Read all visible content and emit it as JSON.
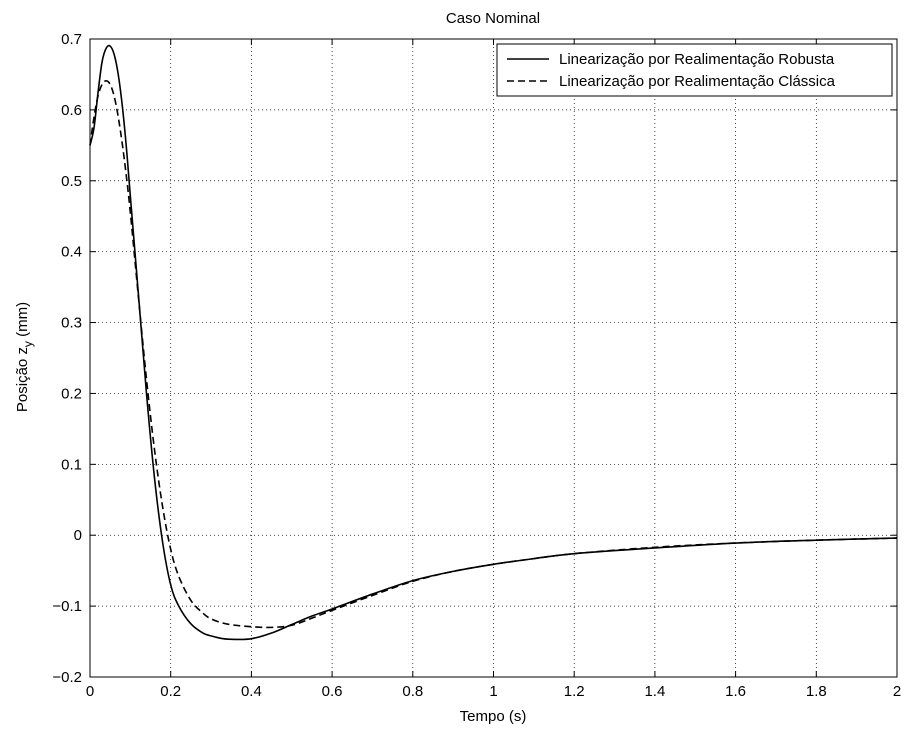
{
  "chart_data": {
    "type": "line",
    "title": "Caso Nominal",
    "xlabel": "Tempo (s)",
    "ylabel_main": "Posição  z",
    "ylabel_sub": "y",
    "ylabel_unit": " (mm)",
    "xlim": [
      0,
      2
    ],
    "ylim": [
      -0.2,
      0.7
    ],
    "x_ticks": [
      0,
      0.2,
      0.4,
      0.6,
      0.8,
      1,
      1.2,
      1.4,
      1.6,
      1.8,
      2
    ],
    "x_tick_labels": [
      "0",
      "0.2",
      "0.4",
      "0.6",
      "0.8",
      "1",
      "1.2",
      "1.4",
      "1.6",
      "1.8",
      "2"
    ],
    "y_ticks": [
      -0.2,
      -0.1,
      0,
      0.1,
      0.2,
      0.3,
      0.4,
      0.5,
      0.6,
      0.7
    ],
    "y_tick_labels": [
      "−0.2",
      "−0.1",
      "0",
      "0.1",
      "0.2",
      "0.3",
      "0.4",
      "0.5",
      "0.6",
      "0.7"
    ],
    "grid": true,
    "legend_position": "top-right",
    "series": [
      {
        "name": "Linearização por Realimentação Robusta",
        "style": "solid",
        "color": "#000000",
        "x": [
          0,
          0.01,
          0.02,
          0.03,
          0.04,
          0.05,
          0.06,
          0.07,
          0.08,
          0.09,
          0.1,
          0.12,
          0.14,
          0.16,
          0.18,
          0.2,
          0.22,
          0.25,
          0.28,
          0.3,
          0.33,
          0.36,
          0.4,
          0.45,
          0.5,
          0.55,
          0.6,
          0.7,
          0.8,
          0.9,
          1.0,
          1.1,
          1.2,
          1.4,
          1.6,
          1.8,
          2.0
        ],
        "y": [
          0.55,
          0.575,
          0.625,
          0.668,
          0.687,
          0.69,
          0.678,
          0.65,
          0.606,
          0.548,
          0.478,
          0.34,
          0.2,
          0.08,
          -0.01,
          -0.07,
          -0.1,
          -0.125,
          -0.138,
          -0.142,
          -0.146,
          -0.147,
          -0.146,
          -0.138,
          -0.126,
          -0.114,
          -0.104,
          -0.083,
          -0.064,
          -0.051,
          -0.041,
          -0.033,
          -0.026,
          -0.018,
          -0.011,
          -0.007,
          -0.004
        ]
      },
      {
        "name": "Linearização por Realimentação Clássica",
        "style": "dashed",
        "color": "#000000",
        "x": [
          0,
          0.01,
          0.02,
          0.03,
          0.04,
          0.05,
          0.06,
          0.07,
          0.08,
          0.09,
          0.1,
          0.12,
          0.14,
          0.16,
          0.18,
          0.2,
          0.22,
          0.25,
          0.28,
          0.3,
          0.33,
          0.36,
          0.4,
          0.45,
          0.5,
          0.55,
          0.6,
          0.7,
          0.8,
          0.9,
          1.0,
          1.1,
          1.2,
          1.4,
          1.6,
          1.8,
          2.0
        ],
        "y": [
          0.55,
          0.59,
          0.62,
          0.636,
          0.641,
          0.636,
          0.619,
          0.59,
          0.552,
          0.507,
          0.455,
          0.336,
          0.22,
          0.12,
          0.04,
          -0.02,
          -0.058,
          -0.092,
          -0.11,
          -0.118,
          -0.124,
          -0.127,
          -0.129,
          -0.13,
          -0.127,
          -0.117,
          -0.106,
          -0.085,
          -0.065,
          -0.051,
          -0.041,
          -0.033,
          -0.026,
          -0.017,
          -0.011,
          -0.007,
          -0.004
        ]
      }
    ]
  }
}
